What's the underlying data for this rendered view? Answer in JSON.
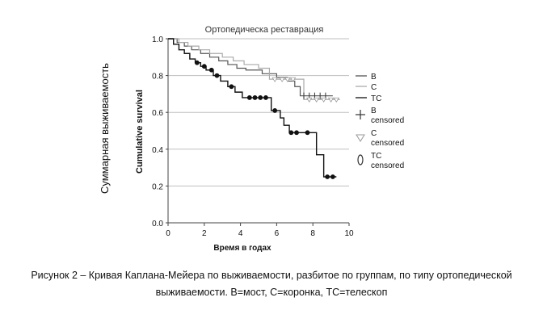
{
  "outer_ylabel": "Суммарная выживаемость",
  "caption": {
    "line1": "Рисунок 2 – Кривая Каплана-Мейера по выживаемости, разбитое по группам, по типу ортопедической",
    "line2": "выживаемости. В=мост, С=коронка, ТС=телескоп"
  },
  "chart_data": {
    "type": "line",
    "title": "Ортопедическа реставрация",
    "xlabel": "Время в годах",
    "ylabel": "Cumulative survival",
    "xlim": [
      0,
      10
    ],
    "ylim": [
      0,
      1.0
    ],
    "xticks": [
      "0",
      "2",
      "4",
      "6",
      "8",
      "10"
    ],
    "yticks": [
      "0.0",
      "0.2",
      "0.4",
      "0.6",
      "0.8",
      "1.0"
    ],
    "grid": "horizontal",
    "legend_position": "right",
    "legend": [
      {
        "label": "B",
        "symbol": "line-dark"
      },
      {
        "label": "C",
        "symbol": "line-light"
      },
      {
        "label": "TC",
        "symbol": "line-black"
      },
      {
        "label": "B censored",
        "symbol": "plus"
      },
      {
        "label": "C censored",
        "symbol": "triangle"
      },
      {
        "label": "TC censored",
        "symbol": "circle"
      }
    ],
    "series": [
      {
        "name": "B",
        "color": "#555555",
        "x": [
          0,
          0.5,
          0.9,
          1.3,
          1.8,
          2.3,
          2.8,
          3.3,
          3.8,
          4.3,
          5.2,
          6.0,
          6.6,
          7.0,
          7.3,
          9.1
        ],
        "y": [
          1.0,
          0.98,
          0.96,
          0.94,
          0.92,
          0.9,
          0.88,
          0.86,
          0.84,
          0.83,
          0.81,
          0.79,
          0.77,
          0.74,
          0.69,
          0.69
        ],
        "censored_x": [
          7.5,
          7.8,
          8.1,
          8.4,
          8.7
        ]
      },
      {
        "name": "C",
        "color": "#aaaaaa",
        "x": [
          0,
          0.6,
          1.1,
          1.7,
          2.3,
          3.0,
          3.6,
          4.2,
          5.0,
          5.6,
          7.2,
          7.5,
          9.5
        ],
        "y": [
          1.0,
          0.98,
          0.96,
          0.94,
          0.92,
          0.9,
          0.88,
          0.86,
          0.84,
          0.78,
          0.78,
          0.67,
          0.67
        ],
        "censored_x": [
          5.9,
          6.3,
          6.6,
          6.9,
          7.8,
          8.2,
          8.6,
          9.0,
          9.3
        ]
      },
      {
        "name": "TC",
        "color": "#111111",
        "x": [
          0,
          0.3,
          0.6,
          0.9,
          1.2,
          1.5,
          1.8,
          2.1,
          2.5,
          2.9,
          3.3,
          3.7,
          4.1,
          4.6,
          5.7,
          6.2,
          6.4,
          6.7,
          7.5,
          8.2,
          8.6,
          9.3
        ],
        "y": [
          1.0,
          0.97,
          0.94,
          0.92,
          0.89,
          0.87,
          0.85,
          0.83,
          0.8,
          0.77,
          0.74,
          0.71,
          0.68,
          0.68,
          0.61,
          0.57,
          0.53,
          0.49,
          0.49,
          0.37,
          0.25,
          0.25
        ],
        "censored_x": [
          1.6,
          2.0,
          2.4,
          2.7,
          3.5,
          4.5,
          4.8,
          5.1,
          5.4,
          5.9,
          6.8,
          7.1,
          7.7,
          8.8,
          9.1
        ]
      }
    ]
  }
}
